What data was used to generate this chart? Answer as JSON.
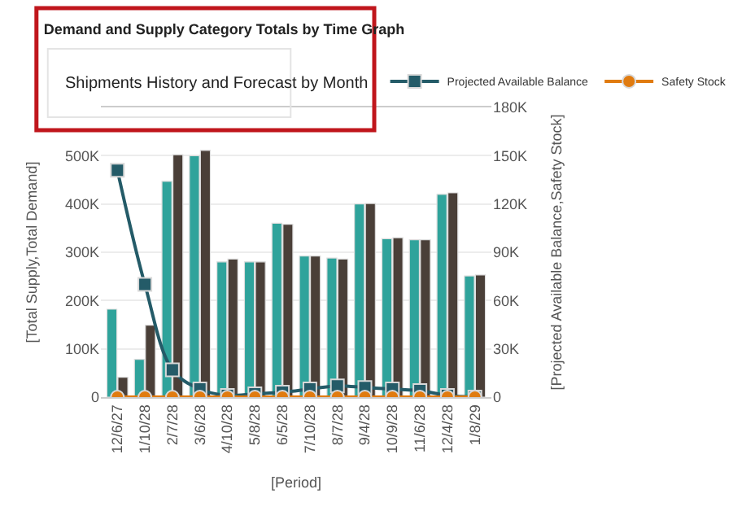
{
  "chart_data": {
    "type": "bar",
    "title": "Demand and Supply Category Totals by Time Graph",
    "xlabel": "[Period]",
    "ylabel": "[Total Supply,Total Demand]",
    "y2label": "[Projected Available Balance,Safety Stock]",
    "annotations": [
      "Shipments History and Forecast by Month"
    ],
    "categories": [
      "12/6/27",
      "1/10/28",
      "2/7/28",
      "3/6/28",
      "4/10/28",
      "5/8/28",
      "6/5/28",
      "7/10/28",
      "8/7/28",
      "9/4/28",
      "10/9/28",
      "11/6/28",
      "12/4/28",
      "1/8/29"
    ],
    "series": [
      {
        "color": "#2fa39b",
        "values": [
          182000,
          78000,
          447000,
          500000,
          280000,
          280000,
          360000,
          292000,
          288000,
          400000,
          328000,
          326000,
          420000,
          251000
        ]
      },
      {
        "color": "#4a3f38",
        "values": [
          41000,
          149000,
          502000,
          511000,
          286000,
          280000,
          358000,
          292000,
          286000,
          401000,
          330000,
          326000,
          423000,
          253000
        ]
      },
      {
        "type": "line",
        "name": "Projected Available Balance",
        "axis": "y2",
        "marker": "square",
        "color": "#245b68",
        "values": [
          141000,
          70000,
          17000,
          5000,
          1000,
          2000,
          3000,
          5000,
          7000,
          6000,
          5000,
          4000,
          1000,
          0
        ]
      },
      {
        "type": "line",
        "name": "Safety Stock",
        "axis": "y2",
        "marker": "circle",
        "color": "#e07b10",
        "values": [
          0,
          0,
          0,
          0,
          0,
          0,
          0,
          0,
          0,
          0,
          0,
          0,
          0,
          0
        ]
      }
    ],
    "ylim": [
      0,
      600000
    ],
    "yticks": [
      0,
      {
        "value": 100000,
        "label": "100K"
      },
      {
        "value": 200000,
        "label": "200K"
      },
      {
        "value": 300000,
        "label": "300K"
      },
      {
        "value": 400000,
        "label": "400K"
      },
      {
        "value": 500000,
        "label": "500K"
      }
    ],
    "y2lim": [
      0,
      180000
    ],
    "y2ticks": [
      0,
      {
        "value": 30000,
        "label": "30K"
      },
      {
        "value": 60000,
        "label": "60K"
      },
      {
        "value": 90000,
        "label": "90K"
      },
      {
        "value": 120000,
        "label": "120K"
      },
      {
        "value": 150000,
        "label": "150K"
      },
      {
        "value": 180000,
        "label": "180K"
      }
    ],
    "grid": "y",
    "legend": "top right"
  }
}
